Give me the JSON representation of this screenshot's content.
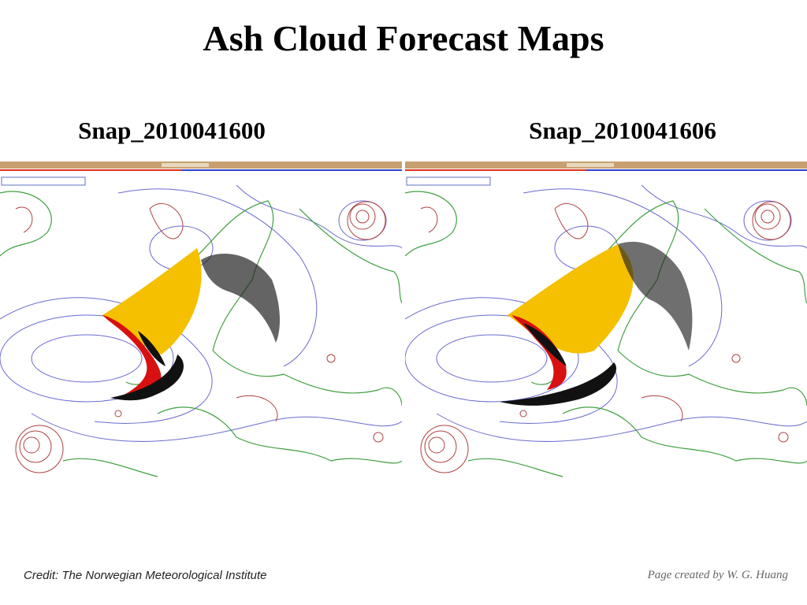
{
  "header": {
    "title": "Ash Cloud Forecast Maps"
  },
  "panels": [
    {
      "caption": "Snap_2010041600"
    },
    {
      "caption": "Snap_2010041606"
    }
  ],
  "footer": {
    "credit": "Credit: The Norwegian Meteorological Institute",
    "author": "Page created by W. G. Huang"
  }
}
